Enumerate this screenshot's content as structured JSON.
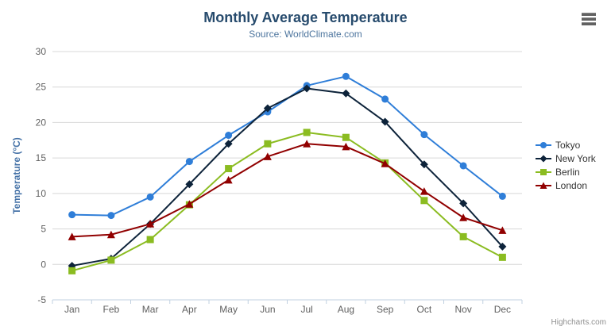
{
  "header": {
    "title": "Monthly Average Temperature",
    "subtitle": "Source: WorldClimate.com"
  },
  "context_menu": {
    "icon": "hamburger-icon"
  },
  "credits": {
    "label": "Highcharts.com"
  },
  "colors": {
    "title": "#274b6d",
    "subtitle": "#4d759e",
    "axis_labels": "#606060",
    "axis_title": "#4572a7",
    "gridline": "#d8d8d8",
    "axis_line": "#c0d0e0",
    "legend_text": "#333333",
    "credits_text": "#909090"
  },
  "chart_data": {
    "type": "line",
    "title": "Monthly Average Temperature",
    "subtitle": "Source: WorldClimate.com",
    "categories": [
      "Jan",
      "Feb",
      "Mar",
      "Apr",
      "May",
      "Jun",
      "Jul",
      "Aug",
      "Sep",
      "Oct",
      "Nov",
      "Dec"
    ],
    "series": [
      {
        "name": "Tokyo",
        "color": "#2f7ed8",
        "marker": "circle",
        "values": [
          7.0,
          6.9,
          9.5,
          14.5,
          18.2,
          21.5,
          25.2,
          26.5,
          23.3,
          18.3,
          13.9,
          9.6
        ]
      },
      {
        "name": "New York",
        "color": "#0d233a",
        "marker": "diamond",
        "values": [
          -0.2,
          0.8,
          5.7,
          11.3,
          17.0,
          22.0,
          24.8,
          24.1,
          20.1,
          14.1,
          8.6,
          2.5
        ]
      },
      {
        "name": "Berlin",
        "color": "#8bbc21",
        "marker": "square",
        "values": [
          -0.9,
          0.6,
          3.5,
          8.4,
          13.5,
          17.0,
          18.6,
          17.9,
          14.3,
          9.0,
          3.9,
          1.0
        ]
      },
      {
        "name": "London",
        "color": "#910000",
        "marker": "triangle",
        "values": [
          3.9,
          4.2,
          5.7,
          8.5,
          11.9,
          15.2,
          17.0,
          16.6,
          14.2,
          10.3,
          6.6,
          4.8
        ]
      }
    ],
    "xlabel": "",
    "ylabel": "Temperature (°C)",
    "ylim": [
      -5,
      30
    ],
    "y_tick_interval": 5,
    "y_ticks": [
      -5,
      0,
      5,
      10,
      15,
      20,
      25,
      30
    ],
    "grid": true,
    "legend_position": "right"
  }
}
